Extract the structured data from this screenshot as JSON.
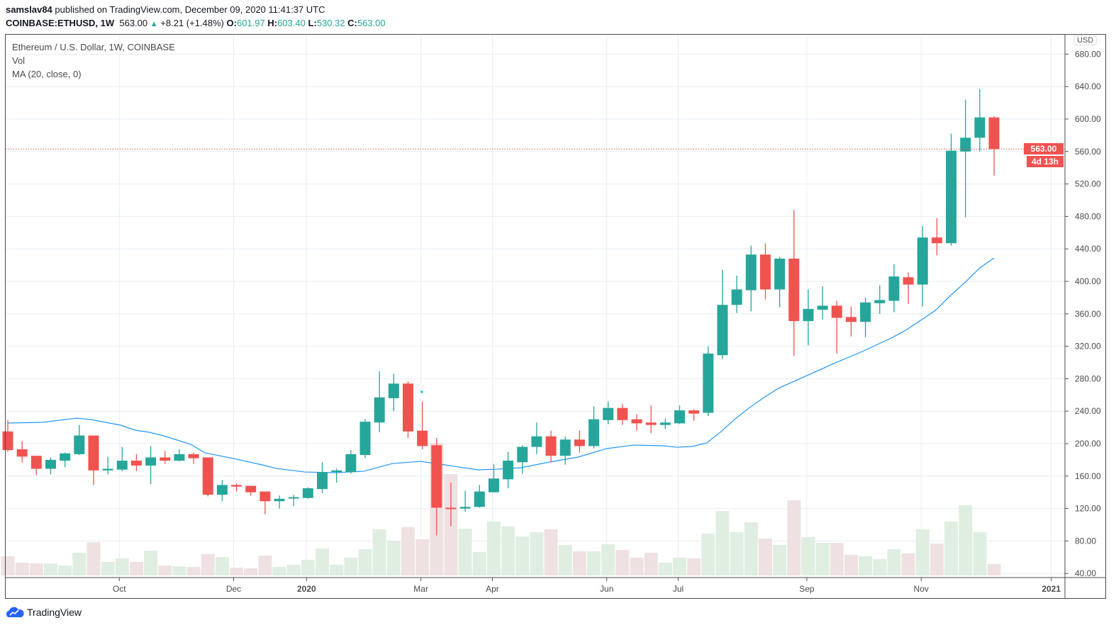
{
  "header": {
    "author": "samslav84",
    "published_text": "published on TradingView.com, December 09, 2020 11:41:37 UTC",
    "symbol": "COINBASE:ETHUSD, 1W",
    "last": "563.00",
    "change": "+8.21 (+1.48%)",
    "o_label": "O:",
    "o": "601.97",
    "h_label": "H:",
    "h": "603.40",
    "l_label": "L:",
    "l": "530.32",
    "c_label": "C:",
    "c": "563.00"
  },
  "legend": {
    "title": "Ethereum / U.S. Dollar, 1W, COINBASE",
    "vol": "Vol",
    "ma": "MA (20, close, 0)"
  },
  "currency": "USD",
  "price_label": "563.00",
  "countdown": "4d 13h",
  "branding": "TradingView",
  "colors": {
    "up": "#26a69a",
    "down": "#ef5350",
    "ma": "#2196f3",
    "vol_up": "#dfeee1",
    "vol_down": "#efe1e2",
    "grid": "#e6eef4"
  },
  "chart_data": {
    "type": "candlestick",
    "title": "Ethereum / U.S. Dollar, 1W, COINBASE",
    "ylabel": "USD",
    "ylim": [
      40,
      680
    ],
    "yticks": [
      "40.00",
      "80.00",
      "120.00",
      "160.00",
      "200.00",
      "240.00",
      "280.00",
      "320.00",
      "360.00",
      "400.00",
      "440.00",
      "480.00",
      "520.00",
      "560.00",
      "600.00",
      "640.00",
      "680.00"
    ],
    "xticks": [
      {
        "label": "Oct",
        "at": 8.8
      },
      {
        "label": "Dec",
        "at": 16.8
      },
      {
        "label": "2020",
        "at": 21.9,
        "bold": true
      },
      {
        "label": "Mar",
        "at": 29.9
      },
      {
        "label": "Apr",
        "at": 34.9
      },
      {
        "label": "Jun",
        "at": 42.9
      },
      {
        "label": "Jul",
        "at": 47.9
      },
      {
        "label": "Sep",
        "at": 56.9
      },
      {
        "label": "Nov",
        "at": 64.9
      },
      {
        "label": "2021",
        "at": 74,
        "bold": true
      }
    ],
    "ohlc": [
      [
        215,
        229,
        190,
        192
      ],
      [
        193,
        203,
        177,
        184
      ],
      [
        185,
        185,
        161,
        169
      ],
      [
        169,
        183,
        162,
        180
      ],
      [
        179,
        189,
        171,
        188
      ],
      [
        187,
        223,
        186,
        210
      ],
      [
        210,
        210,
        149,
        167
      ],
      [
        167,
        184,
        162,
        169
      ],
      [
        168,
        196,
        166,
        179
      ],
      [
        179,
        187,
        166,
        173
      ],
      [
        173,
        197,
        150,
        183
      ],
      [
        183,
        191,
        175,
        179
      ],
      [
        179,
        193,
        178,
        187
      ],
      [
        187,
        189,
        175,
        182
      ],
      [
        183,
        183,
        135,
        137
      ],
      [
        137,
        155,
        129,
        149
      ],
      [
        149,
        151,
        141,
        147
      ],
      [
        148,
        148,
        136,
        140
      ],
      [
        141,
        141,
        113,
        129
      ],
      [
        129,
        136,
        120,
        132
      ],
      [
        133,
        137,
        123,
        134
      ],
      [
        133,
        146,
        132,
        145
      ],
      [
        144,
        177,
        139,
        165
      ],
      [
        165,
        169,
        152,
        167
      ],
      [
        165,
        192,
        163,
        187
      ],
      [
        186,
        230,
        182,
        227
      ],
      [
        226,
        289,
        214,
        257
      ],
      [
        256,
        286,
        240,
        274
      ],
      [
        274,
        277,
        207,
        215
      ],
      [
        216,
        252,
        193,
        197
      ],
      [
        198,
        207,
        87,
        121
      ],
      [
        121,
        152,
        98,
        120
      ],
      [
        120,
        142,
        116,
        122
      ],
      [
        122,
        149,
        121,
        141
      ],
      [
        140,
        175,
        140,
        157
      ],
      [
        156,
        190,
        145,
        179
      ],
      [
        177,
        198,
        163,
        196
      ],
      [
        196,
        226,
        187,
        209
      ],
      [
        209,
        216,
        177,
        185
      ],
      [
        185,
        209,
        174,
        205
      ],
      [
        205,
        216,
        189,
        197
      ],
      [
        197,
        246,
        194,
        230
      ],
      [
        229,
        252,
        224,
        244
      ],
      [
        244,
        249,
        223,
        229
      ],
      [
        230,
        236,
        216,
        225
      ],
      [
        226,
        247,
        213,
        223
      ],
      [
        223,
        231,
        218,
        226
      ],
      [
        225,
        247,
        224,
        241
      ],
      [
        241,
        242,
        228,
        237
      ],
      [
        238,
        320,
        234,
        311
      ],
      [
        309,
        414,
        304,
        371
      ],
      [
        371,
        407,
        361,
        390
      ],
      [
        389,
        444,
        363,
        433
      ],
      [
        433,
        447,
        378,
        390
      ],
      [
        390,
        430,
        368,
        428
      ],
      [
        428,
        488,
        308,
        351
      ],
      [
        351,
        390,
        321,
        366
      ],
      [
        365,
        394,
        353,
        370
      ],
      [
        370,
        376,
        311,
        355
      ],
      [
        356,
        369,
        332,
        350
      ],
      [
        350,
        380,
        331,
        374
      ],
      [
        373,
        395,
        360,
        377
      ],
      [
        376,
        421,
        362,
        406
      ],
      [
        405,
        411,
        372,
        396
      ],
      [
        396,
        468,
        369,
        454
      ],
      [
        454,
        478,
        432,
        447
      ],
      [
        447,
        582,
        444,
        561
      ],
      [
        560,
        624,
        479,
        577
      ],
      [
        577,
        637,
        560,
        602
      ],
      [
        601.97,
        603.4,
        530.32,
        563.0
      ]
    ],
    "volume_relative": [
      27,
      18,
      17,
      17,
      14,
      32,
      47,
      19,
      24,
      19,
      35,
      14,
      13,
      12,
      30,
      26,
      11,
      10,
      28,
      12,
      15,
      22,
      38,
      15,
      25,
      37,
      65,
      49,
      68,
      51,
      187,
      143,
      66,
      33,
      76,
      69,
      55,
      61,
      65,
      43,
      34,
      34,
      44,
      36,
      25,
      32,
      18,
      25,
      24,
      59,
      91,
      61,
      75,
      52,
      43,
      106,
      54,
      46,
      46,
      29,
      27,
      23,
      37,
      31,
      65,
      45,
      76,
      99,
      61,
      16
    ],
    "ma20": [
      [
        1,
        225.3
      ],
      [
        3.4,
        226.2
      ],
      [
        5.8,
        231.4
      ],
      [
        6.8,
        229.7
      ],
      [
        8.9,
        222.7
      ],
      [
        9.9,
        216.6
      ],
      [
        10.9,
        214
      ],
      [
        11.9,
        209.6
      ],
      [
        13.8,
        199.1
      ],
      [
        14.8,
        188.6
      ],
      [
        16.8,
        181.6
      ],
      [
        18.8,
        173.8
      ],
      [
        19.8,
        169.4
      ],
      [
        21.8,
        165
      ],
      [
        23.9,
        164.2
      ],
      [
        25.9,
        166
      ],
      [
        27.9,
        175.5
      ],
      [
        29.9,
        178.1
      ],
      [
        31.9,
        172.9
      ],
      [
        33.9,
        167.7
      ],
      [
        35.2,
        168.5
      ],
      [
        36.9,
        170.3
      ],
      [
        38.9,
        177.3
      ],
      [
        40.9,
        183.4
      ],
      [
        42.9,
        193.9
      ],
      [
        44.8,
        198.2
      ],
      [
        46.8,
        197.4
      ],
      [
        47.8,
        195.6
      ],
      [
        48.9,
        196.5
      ],
      [
        49.9,
        200.9
      ],
      [
        50.9,
        214.8
      ],
      [
        51.9,
        230.6
      ],
      [
        52.9,
        244.5
      ],
      [
        53.9,
        256.8
      ],
      [
        54.9,
        268.1
      ],
      [
        56.9,
        283.8
      ],
      [
        58.9,
        299.6
      ],
      [
        60.9,
        314.4
      ],
      [
        62.9,
        331
      ],
      [
        63.9,
        340.6
      ],
      [
        65.9,
        364.2
      ],
      [
        66.9,
        381.7
      ],
      [
        68,
        399.2
      ],
      [
        69,
        416.6
      ],
      [
        70,
        428.8
      ]
    ],
    "last_price": 563.0
  }
}
